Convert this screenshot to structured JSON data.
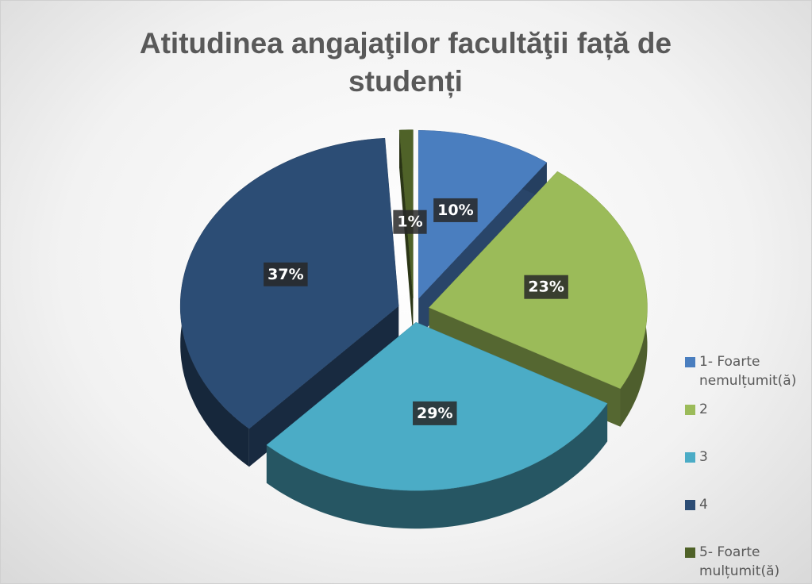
{
  "chart_data": {
    "type": "pie",
    "title": "Atitudinea angajaţilor facultăţii față de studenți",
    "categories": [
      "1- Foarte nemulțumit(ă)",
      "2",
      "3",
      "4",
      "5- Foarte mulțumit(ă)"
    ],
    "values": [
      10,
      23,
      29,
      37,
      1
    ],
    "value_labels": [
      "10%",
      "23%",
      "29%",
      "37%",
      "1%"
    ],
    "colors": [
      "#4a7ebf",
      "#9bbb59",
      "#4bacc6",
      "#2c4d75",
      "#4f6228"
    ],
    "legend": "right"
  }
}
